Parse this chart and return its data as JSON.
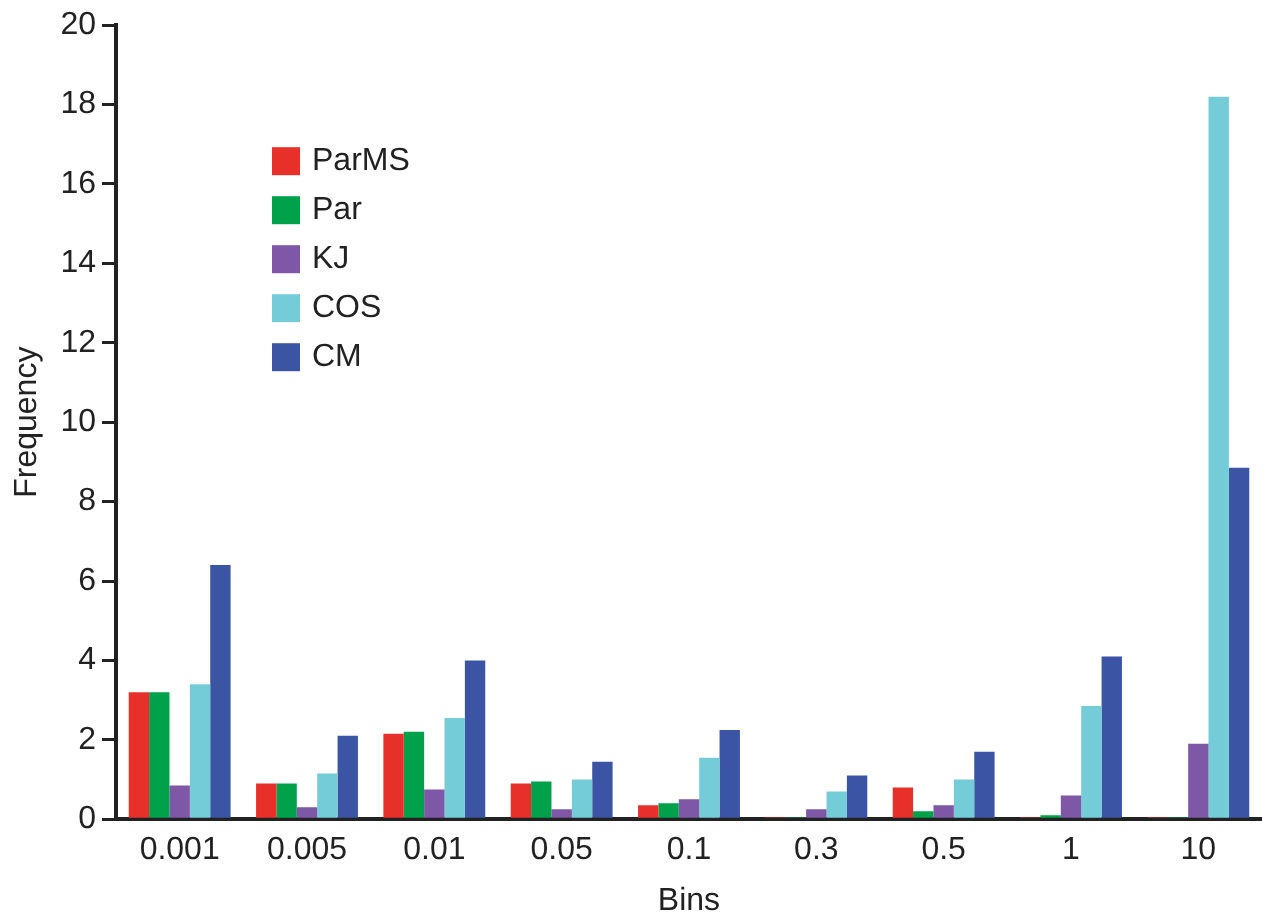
{
  "chart_data": {
    "type": "bar",
    "xlabel": "Bins",
    "ylabel": "Frequency",
    "categories": [
      "0.001",
      "0.005",
      "0.01",
      "0.05",
      "0.1",
      "0.3",
      "0.5",
      "1",
      "10"
    ],
    "series": [
      {
        "name": "ParMS",
        "color": "#e8302a",
        "values": [
          3.2,
          0.9,
          2.15,
          0.9,
          0.35,
          0.05,
          0.8,
          0.05,
          0.05
        ]
      },
      {
        "name": "Par",
        "color": "#00a14b",
        "values": [
          3.2,
          0.9,
          2.2,
          0.95,
          0.4,
          0.05,
          0.2,
          0.1,
          0.05
        ]
      },
      {
        "name": "KJ",
        "color": "#7e57a6",
        "values": [
          0.85,
          0.3,
          0.75,
          0.25,
          0.5,
          0.25,
          0.35,
          0.6,
          1.9
        ]
      },
      {
        "name": "COS",
        "color": "#74ccd8",
        "values": [
          3.4,
          1.15,
          2.55,
          1.0,
          1.55,
          0.7,
          1.0,
          2.85,
          18.2
        ]
      },
      {
        "name": "CM",
        "color": "#3b54a4",
        "values": [
          6.4,
          2.1,
          4.0,
          1.45,
          2.25,
          1.1,
          1.7,
          4.1,
          8.85
        ]
      }
    ],
    "ylim": [
      0,
      20
    ],
    "yticks": [
      0,
      2,
      4,
      6,
      8,
      10,
      12,
      14,
      16,
      18,
      20
    ],
    "grid": false,
    "legend": "top left"
  }
}
